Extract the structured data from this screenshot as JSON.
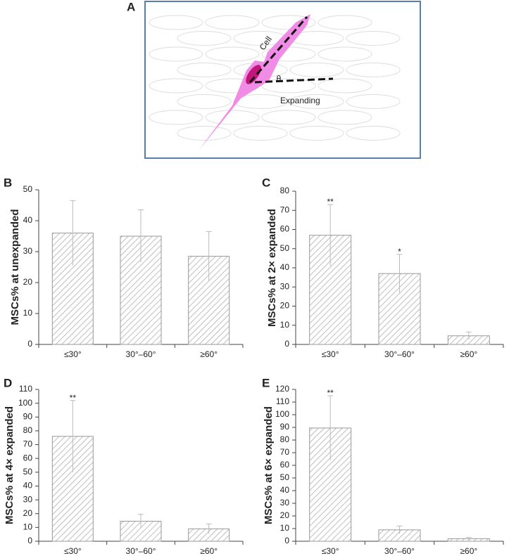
{
  "diagram": {
    "label": "A",
    "cell": "Cell",
    "angle": "θ",
    "expanding": "Expanding"
  },
  "chart_data": [
    {
      "type": "bar",
      "panel_label": "B",
      "ylabel": "MSCs% at unexpanded",
      "categories": [
        "≤30°",
        "30°–60°",
        "≥60°"
      ],
      "values": [
        36,
        35,
        28.5
      ],
      "errors": [
        10.5,
        8.5,
        8
      ],
      "value_annotations": [
        null,
        null,
        null
      ],
      "color": "#999999",
      "ylim": [
        0,
        50
      ],
      "yticks": [
        0,
        10,
        20,
        30,
        40,
        50
      ]
    },
    {
      "type": "bar",
      "panel_label": "C",
      "ylabel": "MSCs% at 2× expanded",
      "categories": [
        "≤30°",
        "30°–60°",
        "≥60°"
      ],
      "values": [
        57,
        37,
        4.5
      ],
      "errors": [
        16,
        10,
        2
      ],
      "value_annotations": [
        "**",
        "*",
        null
      ],
      "color": "#999999",
      "ylim": [
        0,
        80
      ],
      "yticks": [
        0,
        10,
        20,
        30,
        40,
        50,
        60,
        70,
        80
      ]
    },
    {
      "type": "bar",
      "panel_label": "D",
      "ylabel": "MSCs% at 4× expanded",
      "categories": [
        "≤30°",
        "30°–60°",
        "≥60°"
      ],
      "values": [
        76,
        14.5,
        9
      ],
      "errors": [
        26,
        5,
        3.5
      ],
      "value_annotations": [
        "**",
        null,
        null
      ],
      "color": "#999999",
      "ylim": [
        0,
        110
      ],
      "yticks": [
        0,
        10,
        20,
        30,
        40,
        50,
        60,
        70,
        80,
        90,
        100,
        110
      ]
    },
    {
      "type": "bar",
      "panel_label": "E",
      "ylabel": "MSCs% at 6× expanded",
      "categories": [
        "≤30°",
        "30°–60°",
        "≥60°"
      ],
      "values": [
        89.5,
        9,
        2
      ],
      "errors": [
        25.5,
        3,
        1
      ],
      "value_annotations": [
        "**",
        null,
        null
      ],
      "color": "#999999",
      "ylim": [
        0,
        120
      ],
      "yticks": [
        0,
        10,
        20,
        30,
        40,
        50,
        60,
        70,
        80,
        90,
        100,
        110,
        120
      ]
    }
  ]
}
